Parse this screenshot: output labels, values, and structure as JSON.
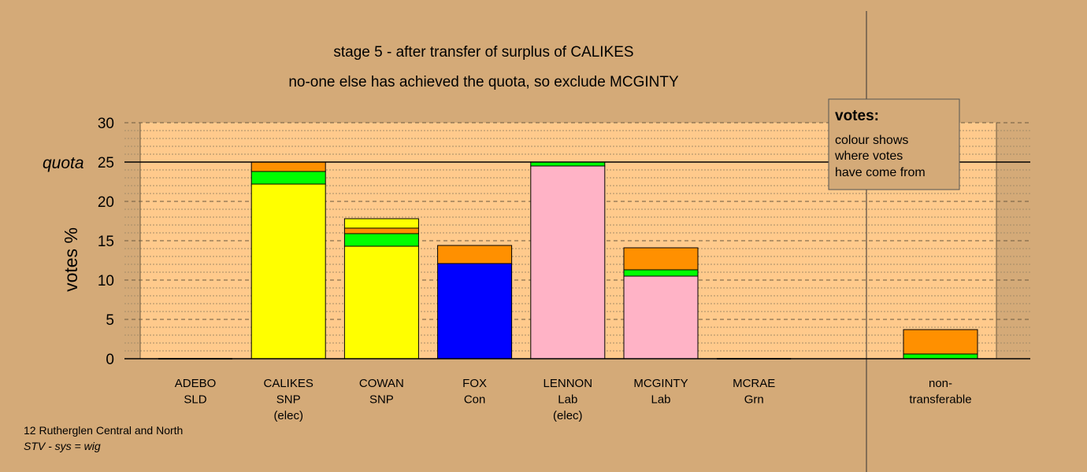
{
  "chart_data": {
    "type": "bar",
    "stacked": true,
    "title": "stage 5 - after transfer of surplus of CALIKES",
    "subtitle": "no-one else has achieved the quota, so exclude MCGINTY",
    "ylabel": "votes %",
    "ylim": [
      0,
      30
    ],
    "yticks": [
      "0",
      "5",
      "10",
      "15",
      "20",
      "25",
      "30"
    ],
    "quota_value": 25,
    "quota_label": "quota",
    "grid": true,
    "legend_placement": "top-right",
    "legend": {
      "heading": "votes:",
      "lines": [
        "colour shows",
        "where votes",
        "have come from"
      ]
    },
    "categories": [
      {
        "name": "ADEBO",
        "party": "SLD",
        "note": ""
      },
      {
        "name": "CALIKES",
        "party": "SNP",
        "note": "(elec)"
      },
      {
        "name": "COWAN",
        "party": "SNP",
        "note": ""
      },
      {
        "name": "FOX",
        "party": "Con",
        "note": ""
      },
      {
        "name": "LENNON",
        "party": "Lab",
        "note": "(elec)"
      },
      {
        "name": "MCGINTY",
        "party": "Lab",
        "note": ""
      },
      {
        "name": "MCRAE",
        "party": "Grn",
        "note": ""
      }
    ],
    "non_transferable": {
      "line1": "non-",
      "line2": "transferable",
      "segments": [
        {
          "color": "#00ff00",
          "value": 0.6
        },
        {
          "color": "#ff9000",
          "value": 3.1
        }
      ]
    },
    "bars": [
      [],
      [
        {
          "color": "#ffff00",
          "value": 22.2
        },
        {
          "color": "#00ff00",
          "value": 1.6
        },
        {
          "color": "#ff9000",
          "value": 1.2
        }
      ],
      [
        {
          "color": "#ffff00",
          "value": 14.3
        },
        {
          "color": "#00ff00",
          "value": 1.6
        },
        {
          "color": "#ff9000",
          "value": 0.7
        },
        {
          "color": "#ffff00",
          "value": 1.2
        }
      ],
      [
        {
          "color": "#0000ff",
          "value": 12.1
        },
        {
          "color": "#ff9000",
          "value": 2.3
        }
      ],
      [
        {
          "color": "#ffb3c6",
          "value": 24.5
        },
        {
          "color": "#00ff00",
          "value": 0.5
        }
      ],
      [
        {
          "color": "#ffb3c6",
          "value": 10.5
        },
        {
          "color": "#00ff00",
          "value": 0.8
        },
        {
          "color": "#ff9000",
          "value": 2.8
        }
      ],
      []
    ]
  },
  "footer": {
    "line1": "12 Rutherglen Central and North",
    "line2": "STV - sys = wig"
  }
}
